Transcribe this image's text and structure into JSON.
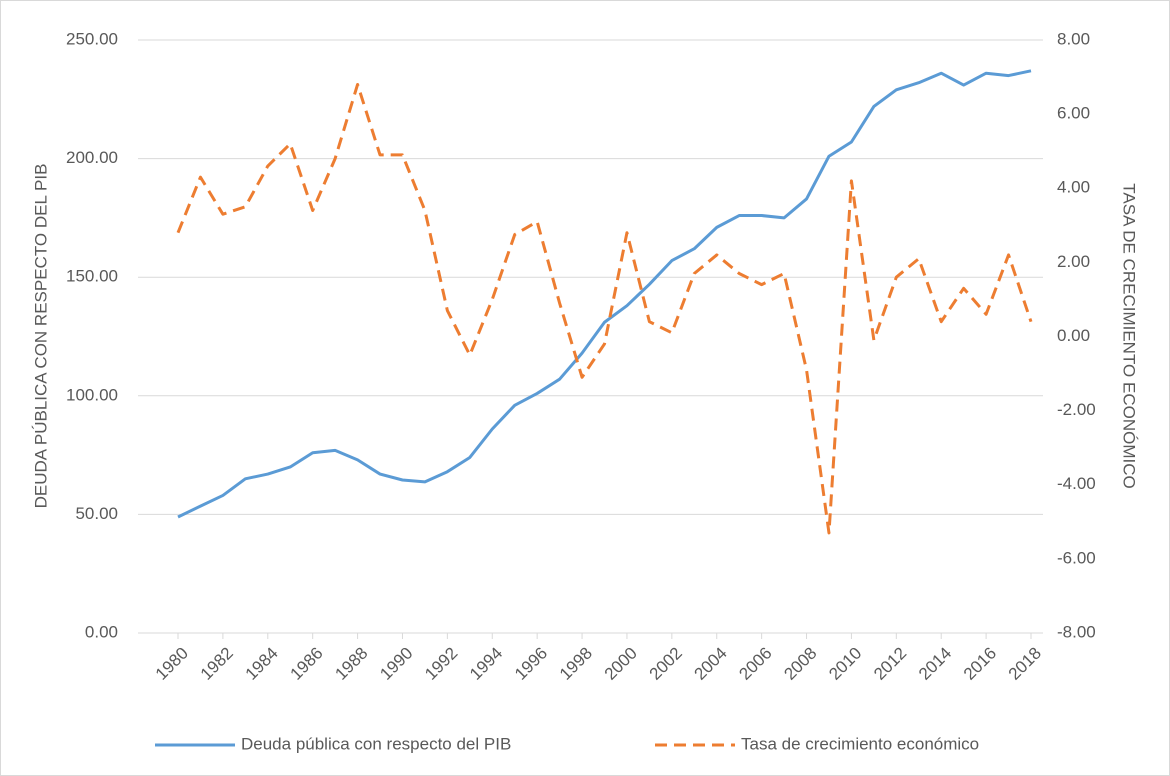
{
  "chart_data": {
    "type": "line",
    "x": [
      1980,
      1981,
      1982,
      1983,
      1984,
      1985,
      1986,
      1987,
      1988,
      1989,
      1990,
      1991,
      1992,
      1993,
      1994,
      1995,
      1996,
      1997,
      1998,
      1999,
      2000,
      2001,
      2002,
      2003,
      2004,
      2005,
      2006,
      2007,
      2008,
      2009,
      2010,
      2011,
      2012,
      2013,
      2014,
      2015,
      2016,
      2017,
      2018
    ],
    "xlim": [
      1980,
      2018
    ],
    "xticks": [
      1980,
      1982,
      1984,
      1986,
      1988,
      1990,
      1992,
      1994,
      1996,
      1998,
      2000,
      2002,
      2004,
      2006,
      2008,
      2010,
      2012,
      2014,
      2016,
      2018
    ],
    "ylabel": "DEUDA PÚBLICA CON RESPECTO DEL PIB",
    "y2label": "TASA DE CRECIMIENTO ECONÓMICO",
    "ylim": [
      0,
      250
    ],
    "yticks": [
      {
        "value": 0,
        "label": "0.00"
      },
      {
        "value": 50,
        "label": "50.00"
      },
      {
        "value": 100,
        "label": "100.00"
      },
      {
        "value": 150,
        "label": "150.00"
      },
      {
        "value": 200,
        "label": "200.00"
      },
      {
        "value": 250,
        "label": "250.00"
      }
    ],
    "y2lim": [
      -8,
      8
    ],
    "y2ticks": [
      {
        "value": -8,
        "label": "-8.00"
      },
      {
        "value": -6,
        "label": "-6.00"
      },
      {
        "value": -4,
        "label": "-4.00"
      },
      {
        "value": -2,
        "label": "-2.00"
      },
      {
        "value": 0,
        "label": "0.00"
      },
      {
        "value": 2,
        "label": "2.00"
      },
      {
        "value": 4,
        "label": "4.00"
      },
      {
        "value": 6,
        "label": "6.00"
      },
      {
        "value": 8,
        "label": "8.00"
      }
    ],
    "grid": true,
    "legend": "bottom",
    "series": [
      {
        "name": "Deuda pública con respecto del PIB",
        "color": "#5b9bd5",
        "dash": false,
        "values": [
          48.9,
          53.5,
          58,
          65,
          67,
          70,
          76,
          77,
          73,
          67,
          64.5,
          63.7,
          68,
          74,
          86,
          96,
          101,
          107,
          118,
          131,
          138,
          147,
          157,
          162,
          171,
          176,
          176,
          175,
          183,
          201,
          207,
          222,
          229,
          232,
          236,
          231,
          236,
          235,
          237
        ]
      },
      {
        "name": "Tasa de crecimiento económico",
        "color": "#ed7d31",
        "dash": true,
        "axis": "y2",
        "values": [
          2.8,
          4.3,
          3.3,
          3.5,
          4.6,
          5.2,
          3.4,
          4.8,
          6.8,
          4.9,
          4.9,
          3.4,
          0.7,
          -0.5,
          1.0,
          2.75,
          3.1,
          0.9,
          -1.1,
          -0.2,
          2.8,
          0.4,
          0.1,
          1.7,
          2.2,
          1.7,
          1.4,
          1.7,
          -0.9,
          -5.3,
          4.2,
          -0.1,
          1.6,
          2.1,
          0.4,
          1.3,
          0.6,
          2.2,
          0.4
        ]
      }
    ]
  }
}
